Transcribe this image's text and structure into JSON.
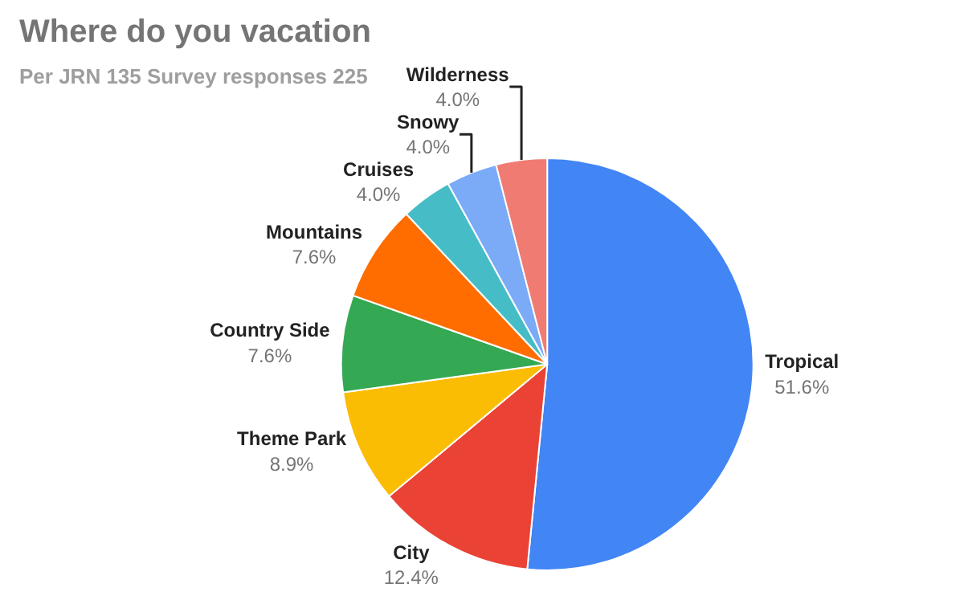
{
  "chart_data": {
    "type": "pie",
    "title": "Where do you vacation",
    "subtitle": "Per JRN 135 Survey responses 225",
    "categories": [
      "Tropical",
      "City",
      "Theme Park",
      "Country Side",
      "Mountains",
      "Cruises",
      "Snowy",
      "Wilderness"
    ],
    "values": [
      51.6,
      12.4,
      8.9,
      7.6,
      7.6,
      4.0,
      4.0,
      4.0
    ],
    "value_labels": [
      "51.6%",
      "12.4%",
      "8.9%",
      "7.6%",
      "7.6%",
      "4.0%",
      "4.0%",
      "4.0%"
    ],
    "colors": [
      "#4285f4",
      "#ea4335",
      "#fbbc04",
      "#34a853",
      "#ff6d01",
      "#46bdc6",
      "#7baaf7",
      "#f07b72"
    ],
    "legend": false
  }
}
